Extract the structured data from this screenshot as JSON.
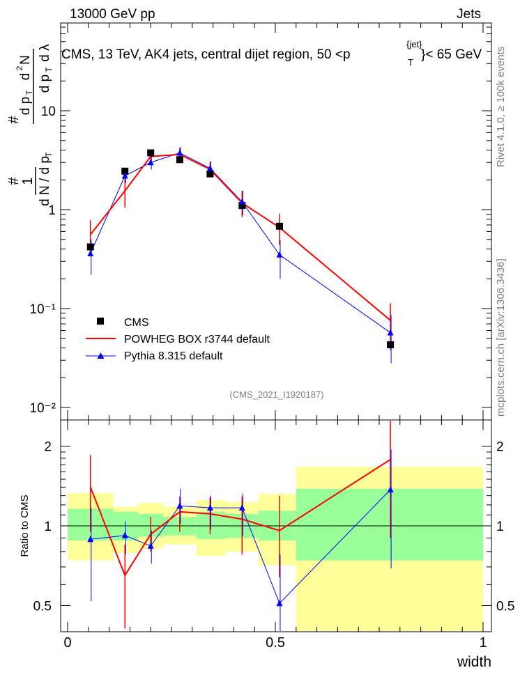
{
  "header": {
    "left": "13000 GeV pp",
    "right": "Jets",
    "title_main": "CMS, 13 TeV, AK4 jets, central dijet region, 50 <p",
    "title_sub": "T",
    "title_sup": "{jet}",
    "title_end": "}< 65 GeV"
  },
  "side": {
    "rivet": "Rivet 4.1.0, ≥ 100k events",
    "mcplots": "mcplots.cern.ch [arXiv:1306.3436]"
  },
  "watermark": "(CMS_2021_I1920187)",
  "colors": {
    "powheg": "#ff0000",
    "pythia": "#0000ff",
    "band_inner": "#99ff99",
    "band_outer": "#ffff99",
    "data": "#000000"
  },
  "chart_data": {
    "type": "line",
    "xlabel": "width",
    "ylabel_main": "1/N dN/dp_T dλ",
    "ylabel_ratio": "Ratio to CMS",
    "xlim": [
      0,
      1
    ],
    "ylim_main": [
      0.01,
      80
    ],
    "ylim_ratio": [
      0.42,
      2.35
    ],
    "x_ticks": [
      "0",
      "0.5",
      "1"
    ],
    "y_ticks_main": [
      "10⁻²",
      "10⁻¹",
      "1",
      "10"
    ],
    "y_ticks_ratio": [
      "0.5",
      "1",
      "2"
    ],
    "legend": [
      "CMS",
      "POWHEG BOX r3744 default",
      "Pythia 8.315 default"
    ],
    "x": [
      0.055,
      0.138,
      0.2,
      0.27,
      0.343,
      0.42,
      0.51,
      0.777
    ],
    "bins": [
      [
        0.0,
        0.11
      ],
      [
        0.11,
        0.17
      ],
      [
        0.17,
        0.23
      ],
      [
        0.23,
        0.31
      ],
      [
        0.31,
        0.38
      ],
      [
        0.38,
        0.46
      ],
      [
        0.46,
        0.55
      ],
      [
        0.55,
        1.0
      ]
    ],
    "series": [
      {
        "name": "CMS",
        "values": [
          0.42,
          2.45,
          3.75,
          3.2,
          2.3,
          1.1,
          0.68,
          0.043
        ]
      },
      {
        "name": "POWHEG BOX r3744 default",
        "values": [
          0.56,
          1.55,
          3.45,
          3.62,
          2.55,
          1.17,
          0.66,
          0.076
        ],
        "err_low": [
          0.15,
          0.5,
          0.5,
          0.45,
          0.4,
          0.33,
          0.22,
          0.038
        ],
        "err_high": [
          0.22,
          0.7,
          0.55,
          0.6,
          0.5,
          0.38,
          0.25,
          0.037
        ]
      },
      {
        "name": "Pythia 8.315 default",
        "values": [
          0.36,
          2.2,
          3.0,
          3.75,
          2.62,
          1.2,
          0.35,
          0.057
        ],
        "err_low": [
          0.14,
          0.35,
          0.45,
          0.45,
          0.4,
          0.32,
          0.15,
          0.029
        ],
        "err_high": [
          0.14,
          0.35,
          0.45,
          0.55,
          0.45,
          0.35,
          0.14,
          0.029
        ]
      }
    ],
    "ratio": {
      "powheg": [
        1.4,
        0.65,
        0.93,
        1.13,
        1.11,
        1.06,
        0.96,
        1.78
      ],
      "powheg_err_low": [
        0.45,
        0.24,
        0.13,
        0.18,
        0.18,
        0.28,
        0.32,
        0.88
      ],
      "powheg_err_high": [
        0.45,
        0.2,
        0.15,
        0.16,
        0.17,
        0.23,
        0.34,
        0.9
      ],
      "pythia": [
        0.89,
        0.92,
        0.84,
        1.19,
        1.17,
        1.17,
        0.51,
        1.37
      ],
      "pythia_err_low": [
        0.37,
        0.14,
        0.12,
        0.17,
        0.2,
        0.25,
        0.15,
        0.68
      ],
      "pythia_err_high": [
        0.28,
        0.12,
        0.12,
        0.19,
        0.13,
        0.15,
        0.27,
        0.57
      ],
      "band_inner": [
        [
          0.88,
          1.16
        ],
        [
          0.88,
          1.13
        ],
        [
          0.91,
          1.11
        ],
        [
          0.92,
          1.08
        ],
        [
          0.89,
          1.13
        ],
        [
          0.9,
          1.11
        ],
        [
          0.88,
          1.14
        ],
        [
          0.74,
          1.38
        ]
      ],
      "band_outer": [
        [
          0.74,
          1.33
        ],
        [
          0.79,
          1.18
        ],
        [
          0.82,
          1.22
        ],
        [
          0.85,
          1.18
        ],
        [
          0.77,
          1.25
        ],
        [
          0.8,
          1.23
        ],
        [
          0.71,
          1.32
        ],
        [
          0.39,
          1.67
        ]
      ]
    }
  }
}
